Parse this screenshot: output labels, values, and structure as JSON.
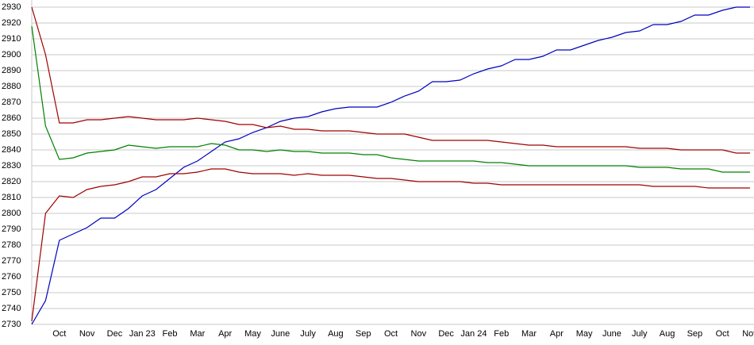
{
  "chart_data": {
    "type": "line",
    "categories": [
      null,
      null,
      "Oct",
      null,
      "Nov",
      null,
      "Dec",
      null,
      "Jan 23",
      null,
      "Feb",
      null,
      "Mar",
      null,
      "Apr",
      null,
      "May",
      null,
      "June",
      null,
      "July",
      null,
      "Aug",
      null,
      "Sep",
      null,
      "Oct",
      null,
      "Nov",
      null,
      "Dec",
      null,
      "Jan 24",
      null,
      "Feb",
      null,
      "Mar",
      null,
      "Apr",
      null,
      "May",
      null,
      "June",
      null,
      "July",
      null,
      "Aug",
      null,
      "Sep",
      null,
      "Oct",
      null,
      "Nov"
    ],
    "series": [
      {
        "color": "#0000c0",
        "values": [
          2730,
          2745,
          2783,
          2787,
          2791,
          2797,
          2797,
          2803,
          2811,
          2815,
          2822,
          2829,
          2833,
          2839,
          2845,
          2847,
          2851,
          2854,
          2858,
          2860,
          2861,
          2864,
          2866,
          2867,
          2867,
          2867,
          2870,
          2874,
          2877,
          2883,
          2883,
          2884,
          2888,
          2891,
          2893,
          2897,
          2897,
          2899,
          2903,
          2903,
          2906,
          2909,
          2911,
          2914,
          2915,
          2919,
          2919,
          2921,
          2925,
          2925,
          2928,
          2930,
          2930
        ]
      },
      {
        "color": "#a00000",
        "values": [
          2930,
          2900,
          2857,
          2857,
          2859,
          2859,
          2860,
          2861,
          2860,
          2859,
          2859,
          2859,
          2860,
          2859,
          2858,
          2856,
          2856,
          2854,
          2855,
          2853,
          2853,
          2852,
          2852,
          2852,
          2851,
          2850,
          2850,
          2850,
          2848,
          2846,
          2846,
          2846,
          2846,
          2846,
          2845,
          2844,
          2843,
          2843,
          2842,
          2842,
          2842,
          2842,
          2842,
          2842,
          2841,
          2841,
          2841,
          2840,
          2840,
          2840,
          2840,
          2838,
          2838
        ]
      },
      {
        "color": "#008000",
        "values": [
          2918,
          2855,
          2834,
          2835,
          2838,
          2839,
          2840,
          2843,
          2842,
          2841,
          2842,
          2842,
          2842,
          2844,
          2843,
          2840,
          2840,
          2839,
          2840,
          2839,
          2839,
          2838,
          2838,
          2838,
          2837,
          2837,
          2835,
          2834,
          2833,
          2833,
          2833,
          2833,
          2833,
          2832,
          2832,
          2831,
          2830,
          2830,
          2830,
          2830,
          2830,
          2830,
          2830,
          2830,
          2829,
          2829,
          2829,
          2828,
          2828,
          2828,
          2826,
          2826,
          2826
        ]
      },
      {
        "color": "#a00000",
        "values": [
          2732,
          2800,
          2811,
          2810,
          2815,
          2817,
          2818,
          2820,
          2823,
          2823,
          2825,
          2825,
          2826,
          2828,
          2828,
          2826,
          2825,
          2825,
          2825,
          2824,
          2825,
          2824,
          2824,
          2824,
          2823,
          2822,
          2822,
          2821,
          2820,
          2820,
          2820,
          2820,
          2819,
          2819,
          2818,
          2818,
          2818,
          2818,
          2818,
          2818,
          2818,
          2818,
          2818,
          2818,
          2818,
          2817,
          2817,
          2817,
          2817,
          2816,
          2816,
          2816,
          2816
        ]
      }
    ],
    "ylim": [
      2730,
      2930
    ],
    "yticks": [
      2730,
      2740,
      2750,
      2760,
      2770,
      2780,
      2790,
      2800,
      2810,
      2820,
      2830,
      2840,
      2850,
      2860,
      2870,
      2880,
      2890,
      2900,
      2910,
      2920,
      2930
    ],
    "grid": true
  }
}
